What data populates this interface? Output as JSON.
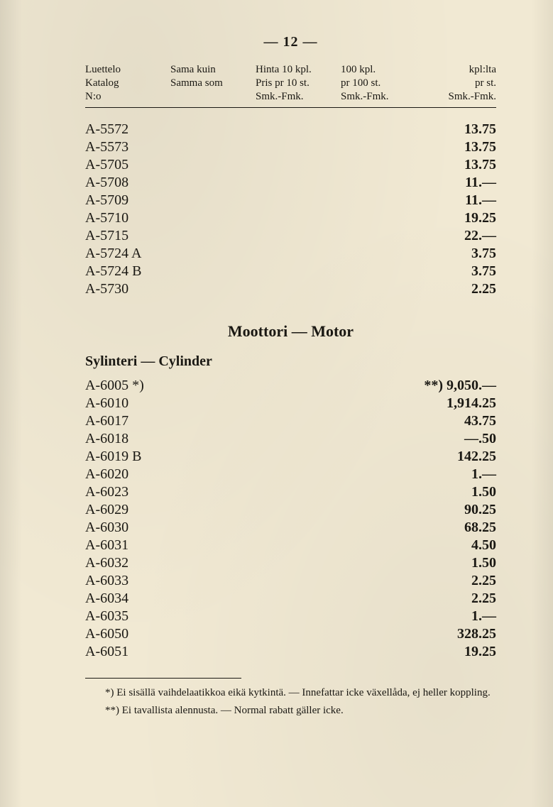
{
  "page": {
    "number_display": "— 12 —"
  },
  "header": {
    "col1": {
      "l1": "Luettelo",
      "l2": "Katalog",
      "l3": "N:o"
    },
    "col2": {
      "l1": "Sama kuin",
      "l2": "Samma som",
      "l3": ""
    },
    "col3": {
      "l1": "Hinta 10 kpl.",
      "l2": "Pris pr 10 st.",
      "l3": "Smk.-Fmk."
    },
    "col4": {
      "l1": "100 kpl.",
      "l2": "pr 100 st.",
      "l3": "Smk.-Fmk."
    },
    "col5": {
      "l1": "kpl:lta",
      "l2": "pr st.",
      "l3": "Smk.-Fmk."
    }
  },
  "rows_top": [
    {
      "code": "A-5572",
      "price": "13.75"
    },
    {
      "code": "A-5573",
      "price": "13.75"
    },
    {
      "code": "A-5705",
      "price": "13.75"
    },
    {
      "code": "A-5708",
      "price": "11.—"
    },
    {
      "code": "A-5709",
      "price": "11.—"
    },
    {
      "code": "A-5710",
      "price": "19.25"
    },
    {
      "code": "A-5715",
      "price": "22.—"
    },
    {
      "code": "A-5724 A",
      "price": "3.75"
    },
    {
      "code": "A-5724 B",
      "price": "3.75"
    },
    {
      "code": "A-5730",
      "price": "2.25"
    }
  ],
  "section": {
    "title": "Moottori — Motor",
    "subtitle": "Sylinteri — Cylinder"
  },
  "rows_bottom": [
    {
      "code": "A-6005 *)",
      "price": "**) 9,050.—"
    },
    {
      "code": "A-6010",
      "price": "1,914.25"
    },
    {
      "code": "A-6017",
      "price": "43.75"
    },
    {
      "code": "A-6018",
      "price": "—.50"
    },
    {
      "code": "A-6019 B",
      "price": "142.25"
    },
    {
      "code": "A-6020",
      "price": "1.—"
    },
    {
      "code": "A-6023",
      "price": "1.50"
    },
    {
      "code": "A-6029",
      "price": "90.25"
    },
    {
      "code": "A-6030",
      "price": "68.25"
    },
    {
      "code": "A-6031",
      "price": "4.50"
    },
    {
      "code": "A-6032",
      "price": "1.50"
    },
    {
      "code": "A-6033",
      "price": "2.25"
    },
    {
      "code": "A-6034",
      "price": "2.25"
    },
    {
      "code": "A-6035",
      "price": "1.—"
    },
    {
      "code": "A-6050",
      "price": "328.25"
    },
    {
      "code": "A-6051",
      "price": "19.25"
    }
  ],
  "footnotes": {
    "n1": "*) Ei sisällä vaihdelaatikkoa eikä kytkintä. — Innefattar icke växellåda, ej heller koppling.",
    "n2": "**) Ei tavallista alennusta. — Normal rabatt gäller icke."
  }
}
